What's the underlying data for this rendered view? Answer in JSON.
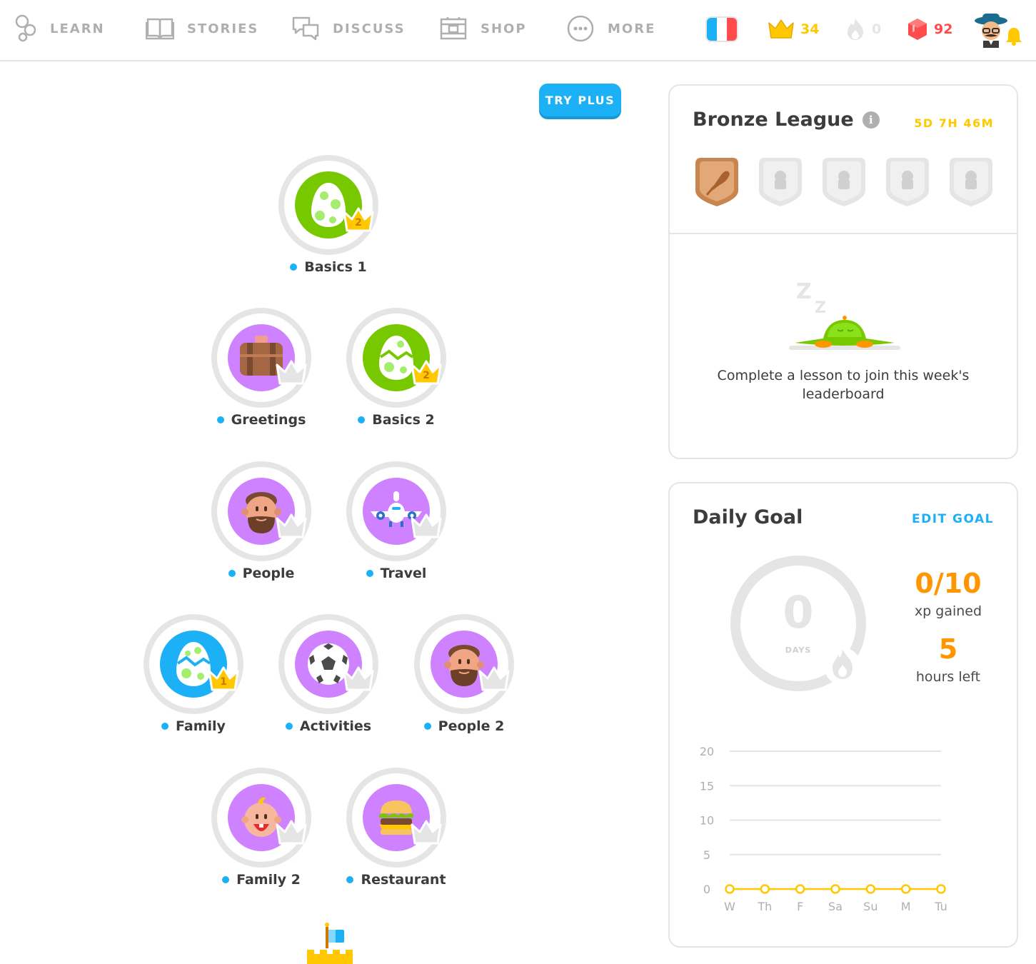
{
  "nav": {
    "items": [
      {
        "label": "LEARN",
        "icon": "learn-icon"
      },
      {
        "label": "STORIES",
        "icon": "book-icon"
      },
      {
        "label": "DISCUSS",
        "icon": "speech-bubbles-icon"
      },
      {
        "label": "SHOP",
        "icon": "shop-icon"
      },
      {
        "label": "MORE",
        "icon": "more-dots-icon"
      }
    ],
    "flag": "france-flag-icon",
    "crowns": "34",
    "streak": "0",
    "gems": "92",
    "colors": {
      "crown": "#ffc800",
      "gem": "#ff4b4b",
      "inactive": "#afafaf"
    }
  },
  "try_plus": "TRY PLUS",
  "skills": [
    {
      "name": "Basics 1",
      "color": "green",
      "crown": "2",
      "icon": "egg-icon"
    },
    {
      "name": "Greetings",
      "color": "purple",
      "crown": "",
      "icon": "suitcase-icon"
    },
    {
      "name": "Basics 2",
      "color": "green",
      "crown": "2",
      "icon": "cracked-egg-icon"
    },
    {
      "name": "People",
      "color": "purple",
      "crown": "",
      "icon": "man-face-icon"
    },
    {
      "name": "Travel",
      "color": "purple",
      "crown": "",
      "icon": "airplane-icon"
    },
    {
      "name": "Family",
      "color": "blue",
      "crown": "1",
      "icon": "cracked-egg-icon"
    },
    {
      "name": "Activities",
      "color": "purple",
      "crown": "",
      "icon": "soccer-ball-icon"
    },
    {
      "name": "People 2",
      "color": "purple",
      "crown": "",
      "icon": "man-face-icon"
    },
    {
      "name": "Family 2",
      "color": "purple",
      "crown": "",
      "icon": "baby-face-icon"
    },
    {
      "name": "Restaurant",
      "color": "purple",
      "crown": "",
      "icon": "burger-icon"
    }
  ],
  "league": {
    "title": "Bronze League",
    "timer": "5D 7H 46M",
    "message": "Complete a lesson to join this week's leaderboard"
  },
  "daily_goal": {
    "title": "Daily Goal",
    "edit_label": "EDIT GOAL",
    "streak_days": "0",
    "streak_unit": "DAYS",
    "xp": "0/10",
    "xp_label": "xp gained",
    "hours": "5",
    "hours_label": "hours left",
    "chart_data": {
      "type": "line",
      "categories": [
        "W",
        "Th",
        "F",
        "Sa",
        "Su",
        "M",
        "Tu"
      ],
      "values": [
        0,
        0,
        0,
        0,
        0,
        0,
        0
      ],
      "yticks": [
        "0",
        "5",
        "10",
        "15",
        "20"
      ],
      "ylim": [
        0,
        20
      ],
      "line_color": "#ffc800"
    }
  }
}
